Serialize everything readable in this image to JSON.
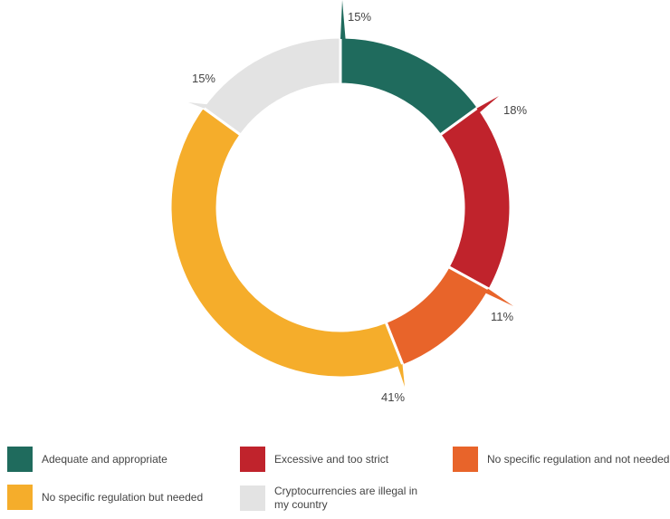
{
  "chart_data": {
    "type": "pie",
    "donut": true,
    "title": "",
    "legend_position": "bottom",
    "categories": [
      "Adequate and appropriate",
      "Excessive and too strict",
      "No specific regulation and not needed",
      "No specific regulation but needed",
      "Cryptocurrencies are illegal in my country"
    ],
    "values": [
      15,
      18,
      11,
      41,
      15
    ],
    "value_labels": [
      "15%",
      "18%",
      "11%",
      "41%",
      "15%"
    ],
    "colors": [
      "#1f6b5d",
      "#c0232c",
      "#e8642a",
      "#f5ad2b",
      "#e3e3e3"
    ]
  }
}
